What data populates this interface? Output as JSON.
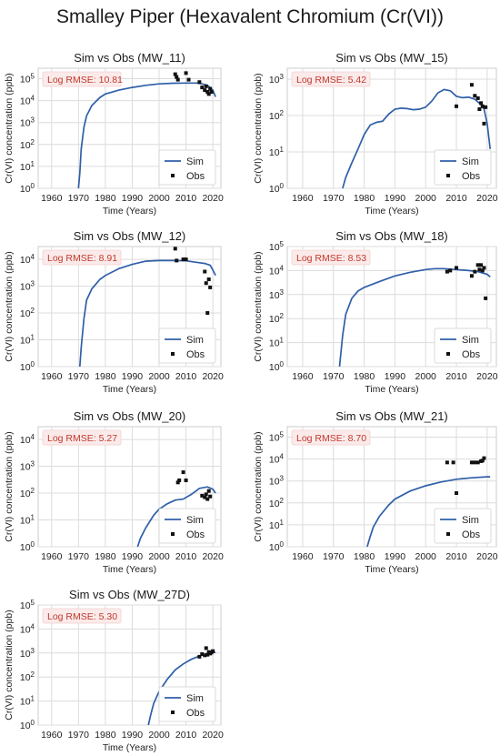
{
  "figure_title": "Smalley Piper (Hexavalent Chromium (Cr(VI))",
  "colors": {
    "sim": "#2f5fa8",
    "obs": "#111111",
    "grid": "#dcdcdc",
    "rmse_text": "#c0392b",
    "rmse_box": "#fbeaea"
  },
  "chart_data": [
    {
      "type": "line",
      "title": "Sim vs Obs (MW_11)",
      "xlabel": "Time (Years)",
      "ylabel": "Cr(VI) concentration (ppb)",
      "annotation": "Log RMSE: 10.81",
      "x_ticks": [
        1960,
        1970,
        1980,
        1990,
        2000,
        2010,
        2020
      ],
      "xlim": [
        1955,
        2023
      ],
      "y_scale": "log",
      "y_ticks": [
        "10^0",
        "10^1",
        "10^2",
        "10^3",
        "10^4",
        "10^5"
      ],
      "ylim": [
        1,
        300000
      ],
      "grid": true,
      "legend": "lower-right",
      "series": [
        {
          "name": "Sim",
          "style": "line",
          "x": [
            1970,
            1970.5,
            1971,
            1972,
            1973,
            1975,
            1978,
            1980,
            1985,
            1990,
            1995,
            2000,
            2005,
            2010,
            2014,
            2016,
            2018,
            2020,
            2021
          ],
          "y": [
            1,
            5,
            60,
            600,
            2000,
            6000,
            14000,
            20000,
            30000,
            40000,
            50000,
            58000,
            62000,
            63000,
            63000,
            58000,
            50000,
            30000,
            15000
          ]
        },
        {
          "name": "Obs",
          "style": "markers",
          "x": [
            2006,
            2006.5,
            2007,
            2010,
            2011,
            2015,
            2016,
            2017,
            2017.5,
            2018,
            2018.5,
            2019,
            2019.5
          ],
          "y": [
            160000,
            120000,
            90000,
            180000,
            90000,
            70000,
            40000,
            30000,
            45000,
            25000,
            20000,
            35000,
            25000
          ]
        }
      ]
    },
    {
      "type": "line",
      "title": "Sim vs Obs (MW_15)",
      "xlabel": "Time (Years)",
      "ylabel": "Cr(VI) concentration (ppb)",
      "annotation": "Log RMSE: 5.42",
      "x_ticks": [
        1960,
        1970,
        1980,
        1990,
        2000,
        2010,
        2020
      ],
      "xlim": [
        1955,
        2023
      ],
      "y_scale": "log",
      "y_ticks": [
        "10^0",
        "10^1",
        "10^2",
        "10^3"
      ],
      "ylim": [
        1,
        2000
      ],
      "grid": true,
      "legend": "lower-right",
      "series": [
        {
          "name": "Sim",
          "style": "line",
          "x": [
            1973,
            1974,
            1976,
            1978,
            1980,
            1982,
            1984,
            1986,
            1988,
            1990,
            1992,
            1994,
            1996,
            1998,
            2000,
            2002,
            2004,
            2006,
            2008,
            2010,
            2012,
            2014,
            2016,
            2018,
            2019,
            2020,
            2021
          ],
          "y": [
            1,
            2,
            5,
            12,
            30,
            55,
            65,
            70,
            110,
            150,
            160,
            155,
            145,
            150,
            170,
            250,
            420,
            520,
            480,
            340,
            310,
            320,
            280,
            200,
            150,
            60,
            12
          ]
        },
        {
          "name": "Obs",
          "style": "markers",
          "x": [
            2010,
            2015,
            2016,
            2017,
            2017.5,
            2018,
            2018.5,
            2019,
            2019.5
          ],
          "y": [
            180,
            700,
            350,
            300,
            150,
            220,
            180,
            60,
            170
          ]
        }
      ]
    },
    {
      "type": "line",
      "title": "Sim vs Obs (MW_12)",
      "xlabel": "Time (Years)",
      "ylabel": "Cr(VI) concentration (ppb)",
      "annotation": "Log RMSE: 8.91",
      "x_ticks": [
        1960,
        1970,
        1980,
        1990,
        2000,
        2010,
        2020
      ],
      "xlim": [
        1955,
        2023
      ],
      "y_scale": "log",
      "y_ticks": [
        "10^0",
        "10^1",
        "10^2",
        "10^3",
        "10^4"
      ],
      "ylim": [
        1,
        30000
      ],
      "grid": true,
      "legend": "lower-right",
      "series": [
        {
          "name": "Sim",
          "style": "line",
          "x": [
            1970.5,
            1971,
            1972,
            1973,
            1975,
            1978,
            1980,
            1985,
            1990,
            1995,
            2000,
            2005,
            2010,
            2015,
            2017,
            2019,
            2020,
            2021
          ],
          "y": [
            1,
            5,
            60,
            300,
            800,
            1800,
            2500,
            4500,
            6500,
            8500,
            9000,
            9000,
            8800,
            7500,
            7000,
            6000,
            4000,
            2500
          ]
        },
        {
          "name": "Obs",
          "style": "markers",
          "x": [
            2006,
            2006.5,
            2009,
            2010,
            2017,
            2017.5,
            2018,
            2018.5,
            2019
          ],
          "y": [
            25000,
            9000,
            10000,
            10000,
            3500,
            1300,
            100,
            1800,
            900
          ]
        }
      ]
    },
    {
      "type": "line",
      "title": "Sim vs Obs (MW_18)",
      "xlabel": "Time (Years)",
      "ylabel": "Cr(VI) concentration (ppb)",
      "annotation": "Log RMSE: 8.53",
      "x_ticks": [
        1960,
        1970,
        1980,
        1990,
        2000,
        2010,
        2020
      ],
      "xlim": [
        1955,
        2023
      ],
      "y_scale": "log",
      "y_ticks": [
        "10^0",
        "10^1",
        "10^2",
        "10^3",
        "10^4",
        "10^5"
      ],
      "ylim": [
        1,
        100000
      ],
      "grid": true,
      "legend": "lower-right",
      "series": [
        {
          "name": "Sim",
          "style": "line",
          "x": [
            1972,
            1973,
            1974,
            1976,
            1978,
            1980,
            1985,
            1990,
            1995,
            2000,
            2003,
            2006,
            2010,
            2014,
            2017,
            2020,
            2021
          ],
          "y": [
            1,
            20,
            150,
            700,
            1400,
            2000,
            3500,
            6000,
            8500,
            11000,
            12000,
            12000,
            11000,
            10000,
            9000,
            7000,
            5500
          ]
        },
        {
          "name": "Obs",
          "style": "markers",
          "x": [
            2007,
            2008,
            2010,
            2015,
            2016,
            2017,
            2017.5,
            2018,
            2018.5,
            2019,
            2019.5
          ],
          "y": [
            9000,
            10000,
            13000,
            6000,
            9000,
            17000,
            11000,
            17000,
            10000,
            13000,
            700
          ]
        }
      ]
    },
    {
      "type": "line",
      "title": "Sim vs Obs (MW_20)",
      "xlabel": "Time (Years)",
      "ylabel": "Cr(VI) concentration (ppb)",
      "annotation": "Log RMSE: 5.27",
      "x_ticks": [
        1960,
        1970,
        1980,
        1990,
        2000,
        2010,
        2020
      ],
      "xlim": [
        1955,
        2023
      ],
      "y_scale": "log",
      "y_ticks": [
        "10^0",
        "10^1",
        "10^2",
        "10^3",
        "10^4"
      ],
      "ylim": [
        1,
        30000
      ],
      "grid": true,
      "legend": "lower-right",
      "series": [
        {
          "name": "Sim",
          "style": "line",
          "x": [
            1992,
            1993,
            1995,
            1998,
            2000,
            2003,
            2006,
            2009,
            2012,
            2015,
            2018,
            2020,
            2021
          ],
          "y": [
            1,
            2,
            5,
            15,
            25,
            40,
            55,
            60,
            90,
            150,
            170,
            140,
            100
          ]
        },
        {
          "name": "Obs",
          "style": "markers",
          "x": [
            2007,
            2007.5,
            2009,
            2010,
            2016,
            2017,
            2017.5,
            2018,
            2018.5,
            2019
          ],
          "y": [
            250,
            300,
            600,
            300,
            80,
            70,
            90,
            60,
            120,
            75
          ]
        }
      ]
    },
    {
      "type": "line",
      "title": "Sim vs Obs (MW_21)",
      "xlabel": "Time (Years)",
      "ylabel": "Cr(VI) concentration (ppb)",
      "annotation": "Log RMSE: 8.70",
      "x_ticks": [
        1960,
        1970,
        1980,
        1990,
        2000,
        2010,
        2020
      ],
      "xlim": [
        1955,
        2023
      ],
      "y_scale": "log",
      "y_ticks": [
        "10^0",
        "10^1",
        "10^2",
        "10^3",
        "10^4",
        "10^5"
      ],
      "ylim": [
        1,
        300000
      ],
      "grid": true,
      "legend": "lower-right",
      "series": [
        {
          "name": "Sim",
          "style": "line",
          "x": [
            1981,
            1982,
            1983,
            1985,
            1988,
            1990,
            1995,
            2000,
            2005,
            2010,
            2015,
            2020,
            2021
          ],
          "y": [
            1,
            3,
            8,
            25,
            80,
            150,
            350,
            600,
            900,
            1200,
            1400,
            1550,
            1550
          ]
        },
        {
          "name": "Obs",
          "style": "markers",
          "x": [
            2007,
            2009,
            2010,
            2015,
            2016,
            2017,
            2018,
            2018.5,
            2019
          ],
          "y": [
            7000,
            7000,
            280,
            7000,
            7000,
            7000,
            8000,
            8500,
            11000
          ]
        }
      ]
    },
    {
      "type": "line",
      "title": "Sim vs Obs (MW_27D)",
      "xlabel": "Time (Years)",
      "ylabel": "Cr(VI) concentration (ppb)",
      "annotation": "Log RMSE: 5.30",
      "x_ticks": [
        1960,
        1970,
        1980,
        1990,
        2000,
        2010,
        2020
      ],
      "xlim": [
        1955,
        2023
      ],
      "y_scale": "log",
      "y_ticks": [
        "10^0",
        "10^1",
        "10^2",
        "10^3",
        "10^4",
        "10^5"
      ],
      "ylim": [
        1,
        100000
      ],
      "grid": true,
      "legend": "lower-right",
      "series": [
        {
          "name": "Sim",
          "style": "line",
          "x": [
            1996,
            1997,
            1998,
            2000,
            2003,
            2006,
            2009,
            2012,
            2015,
            2018,
            2020,
            2021
          ],
          "y": [
            1,
            3,
            8,
            25,
            80,
            200,
            350,
            550,
            750,
            950,
            1050,
            1050
          ]
        },
        {
          "name": "Obs",
          "style": "markers",
          "x": [
            2015,
            2016,
            2017,
            2017.5,
            2018,
            2018.5,
            2019,
            2019.5,
            2020
          ],
          "y": [
            700,
            900,
            800,
            1600,
            850,
            1100,
            950,
            1050,
            1200
          ]
        }
      ]
    }
  ]
}
